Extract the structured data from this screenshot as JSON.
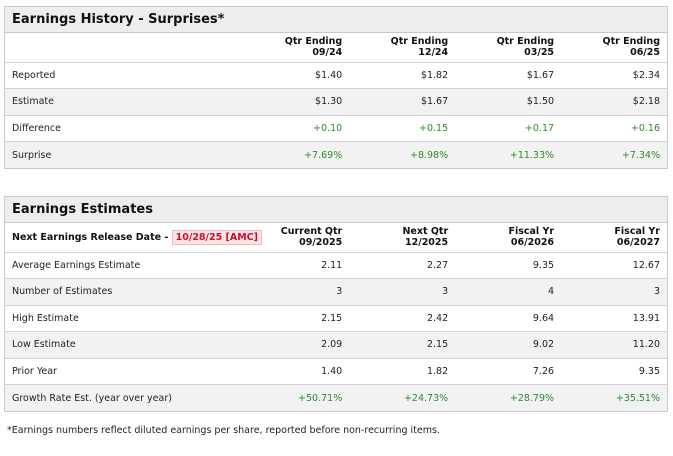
{
  "history": {
    "title": "Earnings History - Surprises*",
    "columns": [
      {
        "line1": "Qtr Ending",
        "line2": "09/24"
      },
      {
        "line1": "Qtr Ending",
        "line2": "12/24"
      },
      {
        "line1": "Qtr Ending",
        "line2": "03/25"
      },
      {
        "line1": "Qtr Ending",
        "line2": "06/25"
      }
    ],
    "rows": [
      {
        "label": "Reported",
        "values": [
          "$1.40",
          "$1.82",
          "$1.67",
          "$2.34"
        ]
      },
      {
        "label": "Estimate",
        "values": [
          "$1.30",
          "$1.67",
          "$1.50",
          "$2.18"
        ]
      },
      {
        "label": "Difference",
        "values": [
          "+0.10",
          "+0.15",
          "+0.17",
          "+0.16"
        ]
      },
      {
        "label": "Surprise",
        "values": [
          "+7.69%",
          "+8.98%",
          "+11.33%",
          "+7.34%"
        ]
      }
    ]
  },
  "estimates": {
    "title": "Earnings Estimates",
    "release_label": "Next Earnings Release Date -",
    "release_date": "10/28/25 [AMC]",
    "columns": [
      {
        "line1": "Current Qtr",
        "line2": "09/2025"
      },
      {
        "line1": "Next Qtr",
        "line2": "12/2025"
      },
      {
        "line1": "Fiscal Yr",
        "line2": "06/2026"
      },
      {
        "line1": "Fiscal Yr",
        "line2": "06/2027"
      }
    ],
    "rows": [
      {
        "label": "Average Earnings Estimate",
        "values": [
          "2.11",
          "2.27",
          "9.35",
          "12.67"
        ]
      },
      {
        "label": "Number of Estimates",
        "values": [
          "3",
          "3",
          "4",
          "3"
        ]
      },
      {
        "label": "High Estimate",
        "values": [
          "2.15",
          "2.42",
          "9.64",
          "13.91"
        ]
      },
      {
        "label": "Low Estimate",
        "values": [
          "2.09",
          "2.15",
          "9.02",
          "11.20"
        ]
      },
      {
        "label": "Prior Year",
        "values": [
          "1.40",
          "1.82",
          "7.26",
          "9.35"
        ]
      },
      {
        "label": "Growth Rate Est. (year over year)",
        "values": [
          "+50.71%",
          "+24.73%",
          "+28.79%",
          "+35.51%"
        ]
      }
    ]
  },
  "footnote": "*Earnings numbers reflect diluted earnings per share, reported before non-recurring items.",
  "colors": {
    "positive": "#2e8b2e",
    "release_date": "#c8102e",
    "header_bg": "#eeeeee",
    "alt_row_bg": "#f2f2f2"
  }
}
